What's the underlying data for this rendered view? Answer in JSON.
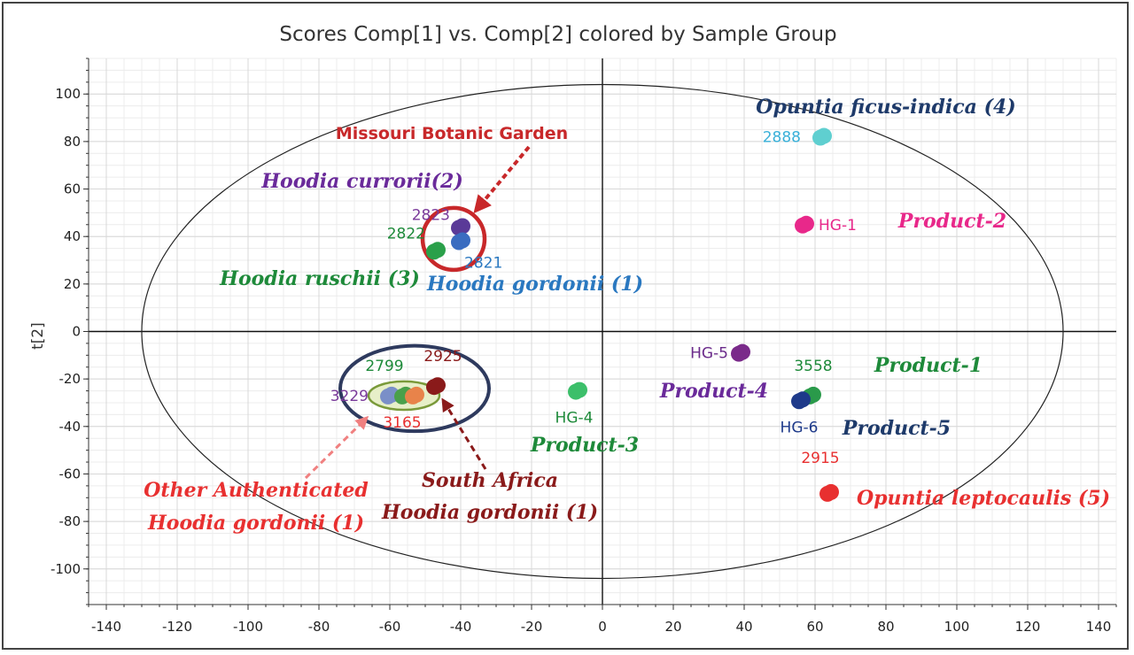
{
  "chart_data": {
    "type": "scatter",
    "title": "Scores Comp[1] vs. Comp[2] colored by Sample Group",
    "xlabel": "",
    "ylabel": "t[2]",
    "xlim": [
      -145,
      145
    ],
    "ylim": [
      -115,
      115
    ],
    "xticks": [
      -140,
      -120,
      -100,
      -80,
      -60,
      -40,
      -20,
      0,
      20,
      40,
      60,
      80,
      100,
      120,
      140
    ],
    "yticks": [
      100,
      80,
      60,
      40,
      20,
      0,
      -20,
      -40,
      -60,
      -80,
      -100
    ],
    "grid": true,
    "ellipse": {
      "cx": 0,
      "cy": 0,
      "rx": 130,
      "ry": 104
    },
    "points": [
      {
        "label": "2888",
        "x": 62,
        "y": 82,
        "color": "#5fcfd0",
        "label_color": "#3ab0d8"
      },
      {
        "label": "HG-1",
        "x": 57,
        "y": 45,
        "color": "#e8288a",
        "label_color": "#e8288a"
      },
      {
        "label": "2823",
        "x": -40,
        "y": 44,
        "color": "#5a3a98",
        "label_color": "#7a3a9a"
      },
      {
        "label": "2821",
        "x": -40,
        "y": 38,
        "color": "#3a6cc0",
        "label_color": "#2a78c0"
      },
      {
        "label": "2822",
        "x": -47,
        "y": 34,
        "color": "#2aa04a",
        "label_color": "#1e8a3a"
      },
      {
        "label": "HG-5",
        "x": 39,
        "y": -9,
        "color": "#7a2a8a",
        "label_color": "#6a2a8a"
      },
      {
        "label": "HG-4",
        "x": -7,
        "y": -25,
        "color": "#3cbf6a",
        "label_color": "#1e8a3a"
      },
      {
        "label": "3558",
        "x": 59,
        "y": -27,
        "color": "#2a9a4a",
        "label_color": "#1e8a3a"
      },
      {
        "label": "HG-6",
        "x": 56,
        "y": -29,
        "color": "#1e3a8a",
        "label_color": "#1e3a8a"
      },
      {
        "label": "2915",
        "x": 64,
        "y": -68,
        "color": "#e83030",
        "label_color": "#e83030"
      },
      {
        "label": "3229",
        "x": -60,
        "y": -27,
        "color": "#7a8fc8",
        "label_color": "#7a3a9a"
      },
      {
        "label": "2799",
        "x": -56,
        "y": -27,
        "color": "#4aa04a",
        "label_color": "#1e8a3a"
      },
      {
        "label": "3165",
        "x": -53,
        "y": -27,
        "color": "#e8834a",
        "label_color": "#e83030"
      },
      {
        "label": "2925",
        "x": -47,
        "y": -23,
        "color": "#8a1a1a",
        "label_color": "#8a1a1a"
      }
    ],
    "annotations": [
      {
        "text": "Opuntia ficus-indica (4)",
        "color": "#1e3a6a"
      },
      {
        "text": "Product-2",
        "color": "#e8288a"
      },
      {
        "text": "Missouri Botanic Garden",
        "color": "#c8282a"
      },
      {
        "text": "Hoodia currorii(2)",
        "color": "#6a2a9a"
      },
      {
        "text": "Hoodia ruschii (3)",
        "color": "#1e8a3a"
      },
      {
        "text": "Hoodia gordonii (1)",
        "color": "#2a78c0"
      },
      {
        "text": "Product-1",
        "color": "#1e8a3a"
      },
      {
        "text": "Product-4",
        "color": "#6a2a9a"
      },
      {
        "text": "Product-5",
        "color": "#1e3a6a"
      },
      {
        "text": "Product-3",
        "color": "#1e8a3a"
      },
      {
        "text": "Opuntia leptocaulis (5)",
        "color": "#e83030"
      },
      {
        "text": "South Africa",
        "color": "#8a1a1a"
      },
      {
        "text": "Hoodia gordonii (1)",
        "color": "#8a1a1a"
      },
      {
        "text": "Other Authenticated",
        "color": "#e83030"
      },
      {
        "text": "Hoodia gordonii (1)",
        "color": "#e83030"
      }
    ]
  }
}
